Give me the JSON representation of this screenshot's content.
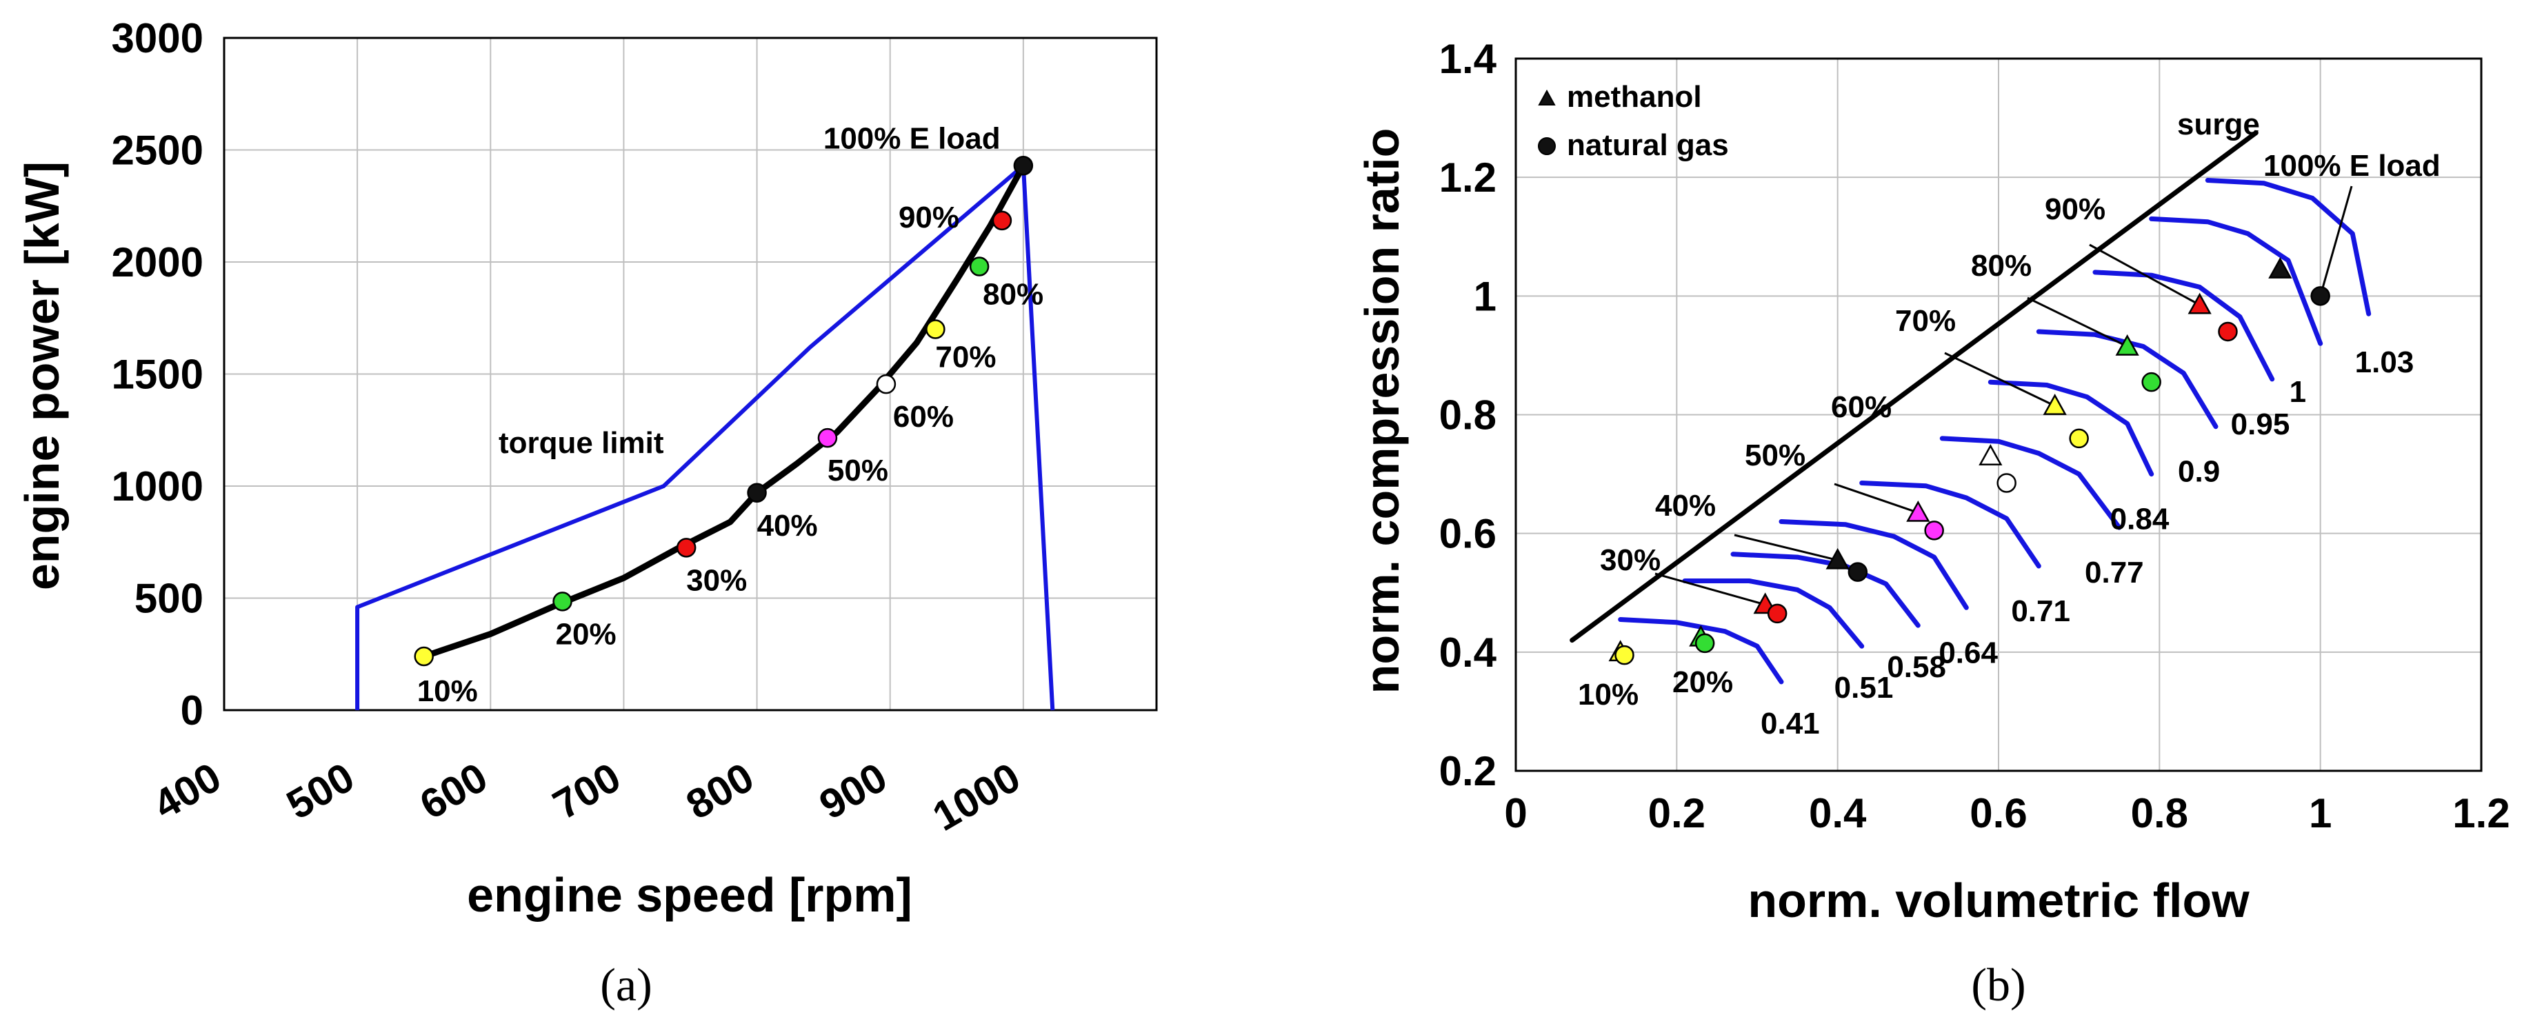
{
  "chart_data": [
    {
      "id": "a",
      "type": "line",
      "caption": "(a)",
      "xlabel": "engine speed [rpm]",
      "ylabel": "engine power [kW]",
      "xlim": [
        400,
        1100
      ],
      "ylim": [
        0,
        3000
      ],
      "xticks": [
        400,
        500,
        600,
        700,
        800,
        900,
        1000
      ],
      "yticks": [
        0,
        500,
        1000,
        1500,
        2000,
        2500,
        3000
      ],
      "grid": true,
      "colors": {
        "limit": "#1515e0",
        "operating": "#000000"
      },
      "torque_limit": {
        "label": "torque limit",
        "x": [
          500,
          500,
          730,
          840,
          1000,
          1022
        ],
        "y": [
          0,
          460,
          1000,
          1620,
          2430,
          0
        ]
      },
      "operating_curve": {
        "x": [
          550,
          600,
          650,
          700,
          740,
          780,
          800,
          830,
          860,
          890,
          920,
          950,
          975,
          1000
        ],
        "y": [
          240,
          340,
          470,
          590,
          720,
          840,
          970,
          1100,
          1240,
          1430,
          1640,
          1920,
          2160,
          2430
        ]
      },
      "points": [
        {
          "label": "10%",
          "x": 550,
          "y": 240,
          "color": "#ffff33"
        },
        {
          "label": "20%",
          "x": 654,
          "y": 485,
          "color": "#33dd33"
        },
        {
          "label": "30%",
          "x": 747,
          "y": 725,
          "color": "#ee1111"
        },
        {
          "label": "40%",
          "x": 800,
          "y": 970,
          "color": "#111111"
        },
        {
          "label": "50%",
          "x": 853,
          "y": 1215,
          "color": "#ff33ff"
        },
        {
          "label": "60%",
          "x": 897,
          "y": 1455,
          "color": "#ffffff"
        },
        {
          "label": "70%",
          "x": 934,
          "y": 1700,
          "color": "#ffff33"
        },
        {
          "label": "80%",
          "x": 967,
          "y": 1980,
          "color": "#33dd33"
        },
        {
          "label": "90%",
          "x": 984,
          "y": 2185,
          "color": "#ee1111"
        },
        {
          "label": "100% E load",
          "x": 1000,
          "y": 2430,
          "color": "#111111"
        }
      ]
    },
    {
      "id": "b",
      "type": "scatter",
      "caption": "(b)",
      "xlabel": "norm. volumetric flow",
      "ylabel": "norm. compression ratio",
      "xlim": [
        0,
        1.2
      ],
      "ylim": [
        0.2,
        1.4
      ],
      "xticks": [
        0,
        0.2,
        0.4,
        0.6,
        0.8,
        1,
        1.2
      ],
      "yticks": [
        0.2,
        0.4,
        0.6,
        0.8,
        1,
        1.2,
        1.4
      ],
      "xtick_labels": [
        "0",
        "0.2",
        "0.4",
        "0.6",
        "0.8",
        "1",
        "1.2"
      ],
      "ytick_labels": [
        "0.2",
        "0.4",
        "0.6",
        "0.8",
        "1",
        "1.2",
        "1.4"
      ],
      "grid": true,
      "colors": {
        "speed_lines": "#1515e0",
        "surge": "#000000"
      },
      "surge": {
        "label": "surge",
        "x": [
          0.07,
          0.92
        ],
        "y": [
          0.42,
          1.275
        ]
      },
      "legend": [
        {
          "marker": "triangle",
          "label": "methanol"
        },
        {
          "marker": "circle",
          "label": "natural gas"
        }
      ],
      "speed_lines": [
        {
          "label": "0.41",
          "x": [
            0.13,
            0.2,
            0.26,
            0.3,
            0.33
          ],
          "y": [
            0.455,
            0.45,
            0.435,
            0.41,
            0.35
          ]
        },
        {
          "label": "0.51",
          "x": [
            0.21,
            0.29,
            0.35,
            0.39,
            0.43
          ],
          "y": [
            0.52,
            0.52,
            0.505,
            0.475,
            0.41
          ]
        },
        {
          "label": "0.58",
          "x": [
            0.27,
            0.35,
            0.41,
            0.46,
            0.5
          ],
          "y": [
            0.565,
            0.56,
            0.545,
            0.515,
            0.445
          ]
        },
        {
          "label": "0.64",
          "x": [
            0.33,
            0.41,
            0.47,
            0.52,
            0.56
          ],
          "y": [
            0.62,
            0.615,
            0.595,
            0.56,
            0.475
          ]
        },
        {
          "label": "0.71",
          "x": [
            0.43,
            0.51,
            0.56,
            0.61,
            0.65
          ],
          "y": [
            0.685,
            0.68,
            0.66,
            0.625,
            0.545
          ]
        },
        {
          "label": "0.77",
          "x": [
            0.53,
            0.6,
            0.65,
            0.7,
            0.75
          ],
          "y": [
            0.76,
            0.755,
            0.735,
            0.7,
            0.61
          ]
        },
        {
          "label": "0.84",
          "x": [
            0.59,
            0.66,
            0.71,
            0.76,
            0.79
          ],
          "y": [
            0.855,
            0.85,
            0.83,
            0.785,
            0.7
          ]
        },
        {
          "label": "0.9",
          "x": [
            0.65,
            0.72,
            0.78,
            0.83,
            0.87
          ],
          "y": [
            0.94,
            0.935,
            0.915,
            0.87,
            0.78
          ]
        },
        {
          "label": "0.95",
          "x": [
            0.72,
            0.79,
            0.85,
            0.9,
            0.94
          ],
          "y": [
            1.04,
            1.035,
            1.015,
            0.965,
            0.86
          ]
        },
        {
          "label": "1",
          "x": [
            0.79,
            0.86,
            0.91,
            0.96,
            1.0
          ],
          "y": [
            1.13,
            1.125,
            1.105,
            1.06,
            0.92
          ]
        },
        {
          "label": "1.03",
          "x": [
            0.86,
            0.93,
            0.99,
            1.04,
            1.06
          ],
          "y": [
            1.195,
            1.19,
            1.165,
            1.105,
            0.97
          ]
        }
      ],
      "load_labels": [
        "10%",
        "20%",
        "30%",
        "40%",
        "50%",
        "60%",
        "70%",
        "80%",
        "90%",
        "100% E load"
      ],
      "methanol": [
        {
          "x": 0.13,
          "y": 0.4,
          "color": "#ffff33"
        },
        {
          "x": 0.23,
          "y": 0.425,
          "color": "#33dd33"
        },
        {
          "x": 0.31,
          "y": 0.48,
          "color": "#ee1111"
        },
        {
          "x": 0.4,
          "y": 0.555,
          "color": "#111111"
        },
        {
          "x": 0.5,
          "y": 0.635,
          "color": "#ff33ff"
        },
        {
          "x": 0.59,
          "y": 0.73,
          "color": "#ffffff"
        },
        {
          "x": 0.67,
          "y": 0.815,
          "color": "#ffff33"
        },
        {
          "x": 0.76,
          "y": 0.915,
          "color": "#33dd33"
        },
        {
          "x": 0.85,
          "y": 0.985,
          "color": "#ee1111"
        },
        {
          "x": 0.95,
          "y": 1.045,
          "color": "#111111"
        }
      ],
      "natural_gas": [
        {
          "x": 0.135,
          "y": 0.395,
          "color": "#ffff33"
        },
        {
          "x": 0.235,
          "y": 0.415,
          "color": "#33dd33"
        },
        {
          "x": 0.325,
          "y": 0.465,
          "color": "#ee1111"
        },
        {
          "x": 0.425,
          "y": 0.535,
          "color": "#111111"
        },
        {
          "x": 0.52,
          "y": 0.605,
          "color": "#ff33ff"
        },
        {
          "x": 0.61,
          "y": 0.685,
          "color": "#ffffff"
        },
        {
          "x": 0.7,
          "y": 0.76,
          "color": "#ffff33"
        },
        {
          "x": 0.79,
          "y": 0.855,
          "color": "#33dd33"
        },
        {
          "x": 0.885,
          "y": 0.94,
          "color": "#ee1111"
        },
        {
          "x": 1.0,
          "y": 1.0,
          "color": "#111111"
        }
      ]
    }
  ]
}
